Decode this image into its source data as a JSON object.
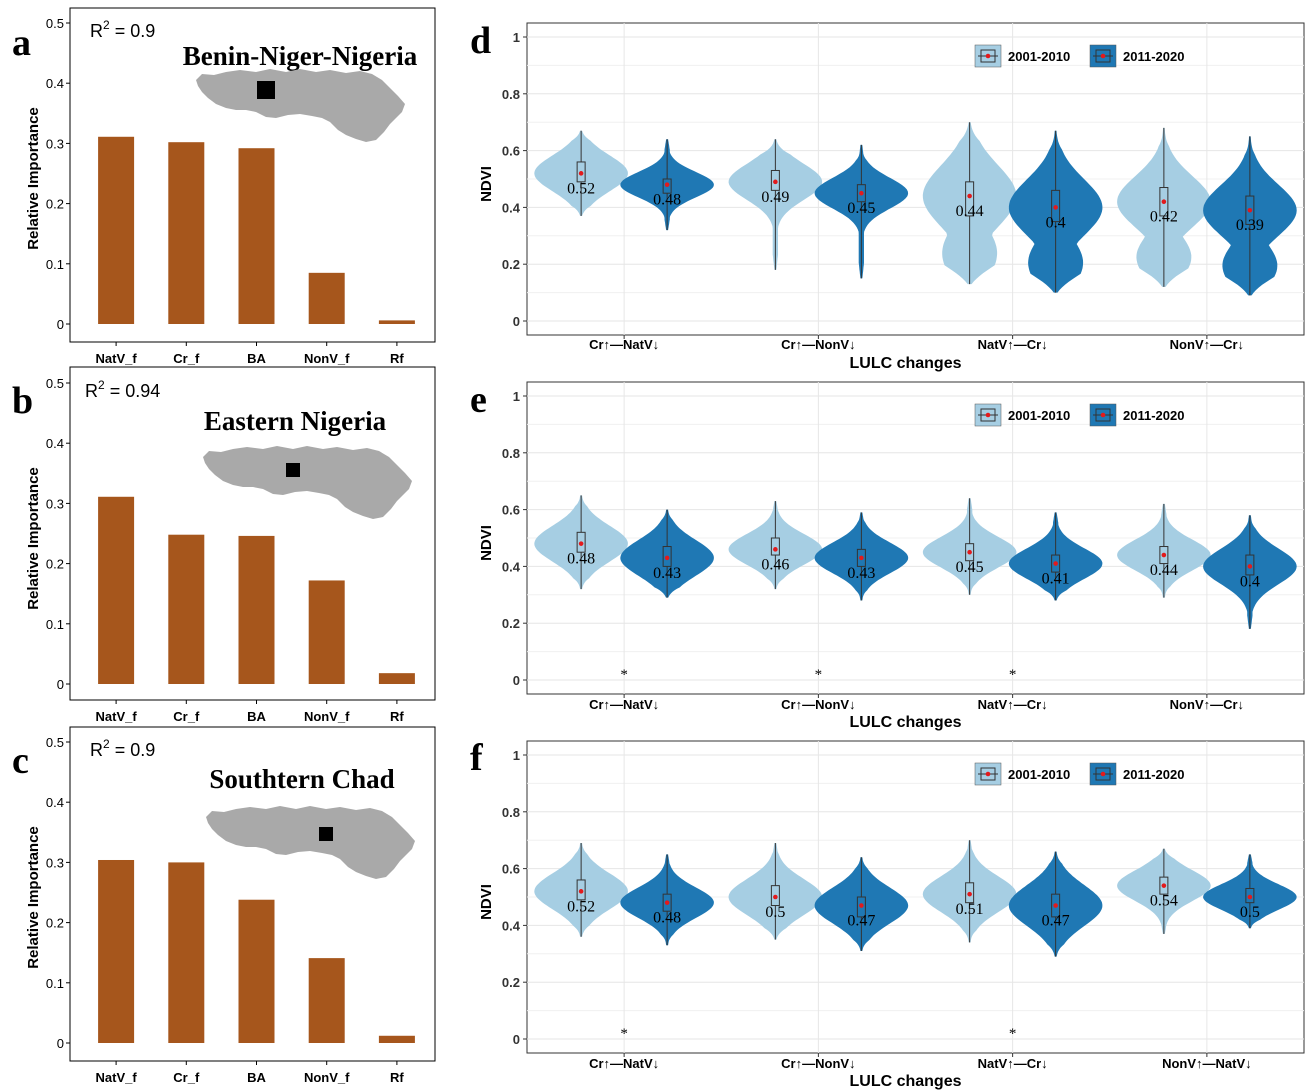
{
  "colors": {
    "bar": "#A6561C",
    "period1": "#A6CEE3",
    "period2": "#1F78B4",
    "mean_dot": "#E31A1C",
    "map": "#A9A9A9",
    "frame": "#333333",
    "grid": "#E6E6E6"
  },
  "chart_data": [
    {
      "panel": "a",
      "type": "bar",
      "r2_prefix": "R",
      "r2_sup": "2",
      "r2_value": " = 0.9",
      "region": "Benin-Niger-Nigeria",
      "ylabel": "Relative Importance",
      "ylim": [
        0,
        0.5
      ],
      "yticks": [
        "0",
        "0.1",
        "0.2",
        "0.3",
        "0.4",
        "0.5"
      ],
      "categories": [
        "NatV_f",
        "Cr_f",
        "BA",
        "NonV_f",
        "Rf"
      ],
      "values": [
        0.311,
        0.302,
        0.292,
        0.085,
        0.006
      ],
      "inset_map": "west-africa-map-with-study-area"
    },
    {
      "panel": "b",
      "type": "bar",
      "r2_prefix": "R",
      "r2_sup": "2",
      "r2_value": " = 0.94",
      "region": "Eastern Nigeria",
      "ylabel": "Relative Importance",
      "ylim": [
        0,
        0.5
      ],
      "yticks": [
        "0",
        "0.1",
        "0.2",
        "0.3",
        "0.4",
        "0.5"
      ],
      "categories": [
        "NatV_f",
        "Cr_f",
        "BA",
        "NonV_f",
        "Rf"
      ],
      "values": [
        0.311,
        0.248,
        0.246,
        0.172,
        0.018
      ],
      "inset_map": "west-africa-map-with-study-area"
    },
    {
      "panel": "c",
      "type": "bar",
      "r2_prefix": "R",
      "r2_sup": "2",
      "r2_value": " = 0.9",
      "region": "Southtern Chad",
      "ylabel": "Relative Importance",
      "ylim": [
        0,
        0.5
      ],
      "yticks": [
        "0",
        "0.1",
        "0.2",
        "0.3",
        "0.4",
        "0.5"
      ],
      "categories": [
        "NatV_f",
        "Cr_f",
        "BA",
        "NonV_f",
        "Rf"
      ],
      "values": [
        0.304,
        0.3,
        0.238,
        0.141,
        0.012
      ],
      "inset_map": "west-africa-map-with-study-area"
    },
    {
      "panel": "d",
      "type": "violin",
      "ylabel": "NDVI",
      "xlabel": "LULC changes",
      "ylim": [
        0,
        1
      ],
      "yticks": [
        "0",
        "0.2",
        "0.4",
        "0.6",
        "0.8",
        "1"
      ],
      "legend": [
        "2001-2010",
        "2011-2020"
      ],
      "legend_position": "top-right",
      "categories": [
        "Cr↑—NatV↓",
        "Cr↑—NonV↓",
        "NatV↑—Cr↓",
        "NonV↑—Cr↓"
      ],
      "significance": [
        "",
        "",
        "",
        ""
      ],
      "series": [
        {
          "name": "2001-2010",
          "mean_labels": [
            "0.52",
            "0.49",
            "0.44",
            "0.42"
          ],
          "means": [
            0.52,
            0.49,
            0.44,
            0.42
          ],
          "min": [
            0.37,
            0.18,
            0.13,
            0.12
          ],
          "max": [
            0.67,
            0.64,
            0.7,
            0.68
          ],
          "q1": [
            0.49,
            0.46,
            0.37,
            0.37
          ],
          "q3": [
            0.56,
            0.53,
            0.49,
            0.47
          ],
          "bimodal": [
            false,
            false,
            true,
            true
          ]
        },
        {
          "name": "2011-2020",
          "mean_labels": [
            "0.48",
            "0.45",
            "0.4",
            "0.39"
          ],
          "means": [
            0.48,
            0.45,
            0.4,
            0.39
          ],
          "min": [
            0.32,
            0.15,
            0.1,
            0.09
          ],
          "max": [
            0.64,
            0.62,
            0.67,
            0.65
          ],
          "q1": [
            0.45,
            0.42,
            0.35,
            0.34
          ],
          "q3": [
            0.5,
            0.48,
            0.46,
            0.44
          ],
          "bimodal": [
            false,
            false,
            true,
            true
          ]
        }
      ]
    },
    {
      "panel": "e",
      "type": "violin",
      "ylabel": "NDVI",
      "xlabel": "LULC changes",
      "ylim": [
        0,
        1
      ],
      "yticks": [
        "0",
        "0.2",
        "0.4",
        "0.6",
        "0.8",
        "1"
      ],
      "legend": [
        "2001-2010",
        "2011-2020"
      ],
      "legend_position": "top-right",
      "categories": [
        "Cr↑—NatV↓",
        "Cr↑—NonV↓",
        "NatV↑—Cr↓",
        "NonV↑—Cr↓"
      ],
      "significance": [
        "*",
        "*",
        "*",
        ""
      ],
      "series": [
        {
          "name": "2001-2010",
          "mean_labels": [
            "0.48",
            "0.46",
            "0.45",
            "0.44"
          ],
          "means": [
            0.48,
            0.46,
            0.45,
            0.44
          ],
          "min": [
            0.32,
            0.32,
            0.3,
            0.29
          ],
          "max": [
            0.65,
            0.63,
            0.64,
            0.62
          ],
          "q1": [
            0.45,
            0.44,
            0.42,
            0.41
          ],
          "q3": [
            0.52,
            0.5,
            0.48,
            0.47
          ],
          "bimodal": [
            false,
            false,
            false,
            false
          ]
        },
        {
          "name": "2011-2020",
          "mean_labels": [
            "0.43",
            "0.43",
            "0.41",
            "0.4"
          ],
          "means": [
            0.43,
            0.43,
            0.41,
            0.4
          ],
          "min": [
            0.29,
            0.28,
            0.28,
            0.18
          ],
          "max": [
            0.6,
            0.59,
            0.59,
            0.58
          ],
          "q1": [
            0.4,
            0.4,
            0.38,
            0.37
          ],
          "q3": [
            0.47,
            0.46,
            0.44,
            0.44
          ],
          "bimodal": [
            false,
            false,
            false,
            false
          ]
        }
      ]
    },
    {
      "panel": "f",
      "type": "violin",
      "ylabel": "NDVI",
      "xlabel": "LULC changes",
      "ylim": [
        0,
        1
      ],
      "yticks": [
        "0",
        "0.2",
        "0.4",
        "0.6",
        "0.8",
        "1"
      ],
      "legend": [
        "2001-2010",
        "2011-2020"
      ],
      "legend_position": "top-right",
      "categories": [
        "Cr↑—NatV↓",
        "Cr↑—NonV↓",
        "NatV↑—Cr↓",
        "NonV↑—NatV↓"
      ],
      "significance": [
        "*",
        "",
        "*",
        ""
      ],
      "series": [
        {
          "name": "2001-2010",
          "mean_labels": [
            "0.52",
            "0.5",
            "0.51",
            "0.54"
          ],
          "means": [
            0.52,
            0.5,
            0.51,
            0.54
          ],
          "min": [
            0.36,
            0.35,
            0.34,
            0.37
          ],
          "max": [
            0.69,
            0.69,
            0.7,
            0.67
          ],
          "q1": [
            0.49,
            0.47,
            0.48,
            0.51
          ],
          "q3": [
            0.56,
            0.54,
            0.55,
            0.57
          ],
          "bimodal": [
            false,
            false,
            false,
            false
          ]
        },
        {
          "name": "2011-2020",
          "mean_labels": [
            "0.48",
            "0.47",
            "0.47",
            "0.5"
          ],
          "means": [
            0.48,
            0.47,
            0.47,
            0.5
          ],
          "min": [
            0.33,
            0.31,
            0.29,
            0.39
          ],
          "max": [
            0.65,
            0.64,
            0.66,
            0.65
          ],
          "q1": [
            0.45,
            0.43,
            0.43,
            0.48
          ],
          "q3": [
            0.51,
            0.5,
            0.51,
            0.53
          ],
          "bimodal": [
            false,
            false,
            false,
            false
          ]
        }
      ]
    }
  ]
}
